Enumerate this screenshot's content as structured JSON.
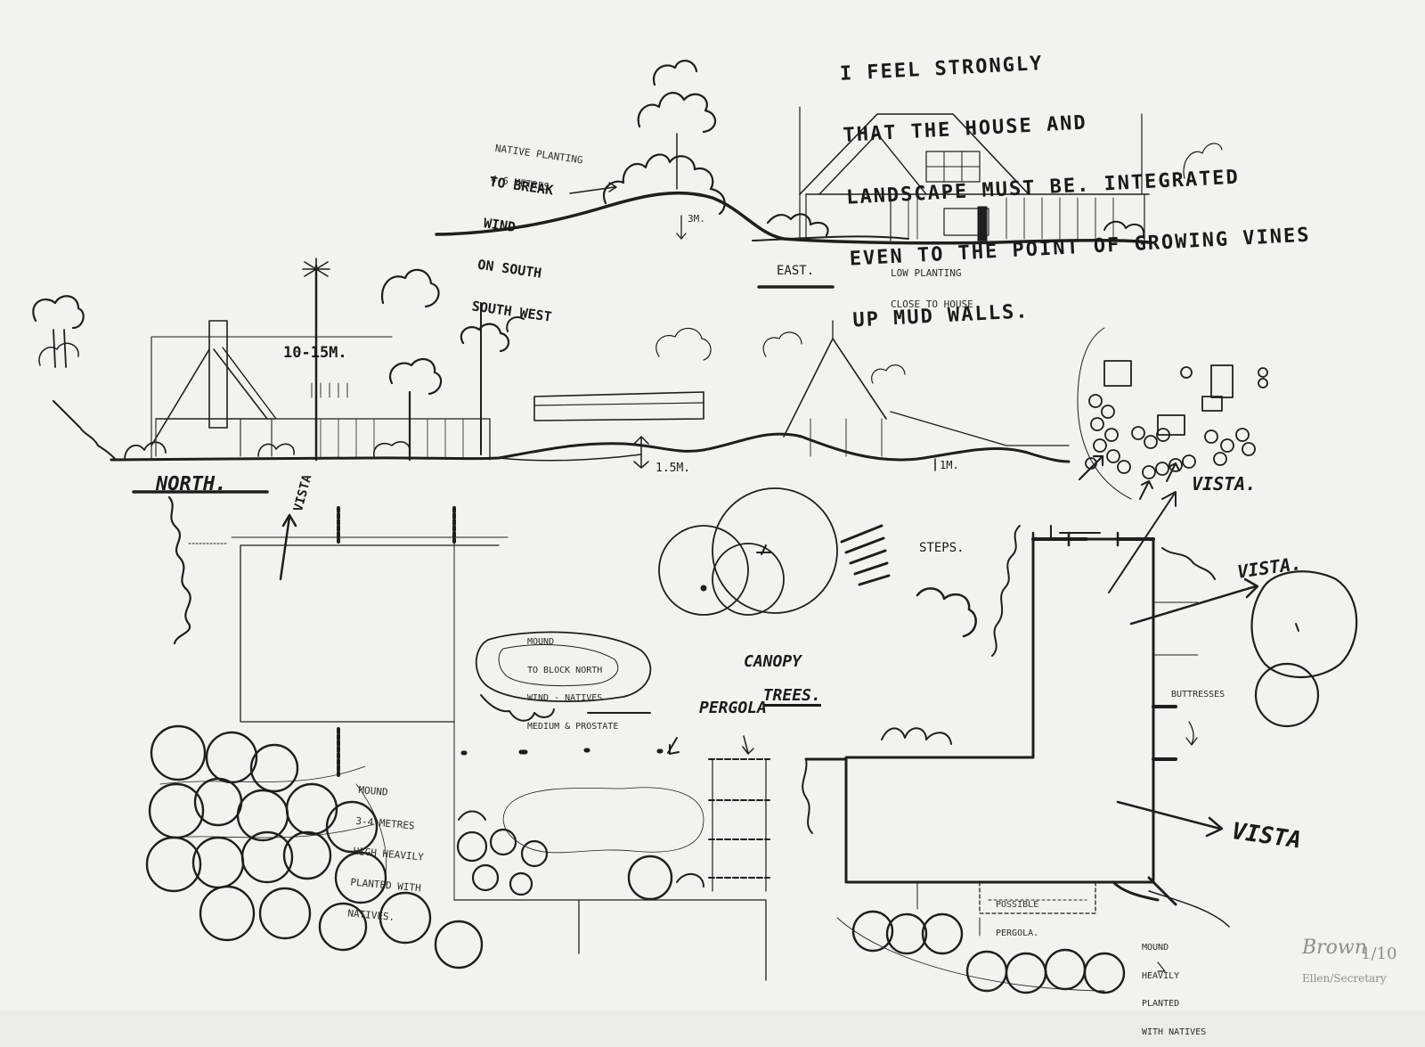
{
  "note_main": {
    "line1": "I FEEL STRONGLY",
    "line2": "THAT THE HOUSE AND",
    "line3": "LANDSCAPE MUST BE. INTEGRATED",
    "line4": "EVEN TO THE POINT OF GROWING VINES",
    "line5": "UP MUD WALLS."
  },
  "east_elevation": {
    "title": "EAST.",
    "native_note": {
      "line1": "NATIVE PLANTING",
      "line2": "4-6 METRES",
      "line3": "TO BREAK",
      "line4": "WIND",
      "line5": "ON SOUTH",
      "line6": "SOUTH WEST"
    },
    "height_mark": "3M.",
    "low_planting": {
      "line1": "LOW PLANTING",
      "line2": "CLOSE TO HOUSE"
    }
  },
  "north_elevation": {
    "title": "NORTH.",
    "tree_height": "10-15M.",
    "mound_height": "1.5M.",
    "small_height": "1M."
  },
  "plan": {
    "vista_left": "VISTA",
    "vista_top": "VISTA.",
    "vista_right": "VISTA.",
    "vista_bottom": "VISTA",
    "steps": "STEPS.",
    "canopy": {
      "line1": "CANOPY",
      "line2": "TREES."
    },
    "mound_north": {
      "line1": "MOUND",
      "line2": "TO BLOCK NORTH",
      "line3": "WIND - NATIVES",
      "line4": "MEDIUM & PROSTATE"
    },
    "pergola": "PERGOLA",
    "buttresses": "BUTTRESSES",
    "mound_left": {
      "line1": "MOUND",
      "line2": "3-4 METRES",
      "line3": "HIGH HEAVILY",
      "line4": "PLANTED WITH",
      "line5": "NATIVES."
    },
    "possible_pergola": {
      "line1": "POSSIBLE",
      "line2": "PERGOLA."
    },
    "mound_right": {
      "line1": "MOUND",
      "line2": "HEAVILY",
      "line3": "PLANTED",
      "line4": "WITH NATIVES"
    }
  },
  "pencil": {
    "signature": "Brown",
    "number": "1/10",
    "catalog": "Ellen/Secretary"
  }
}
